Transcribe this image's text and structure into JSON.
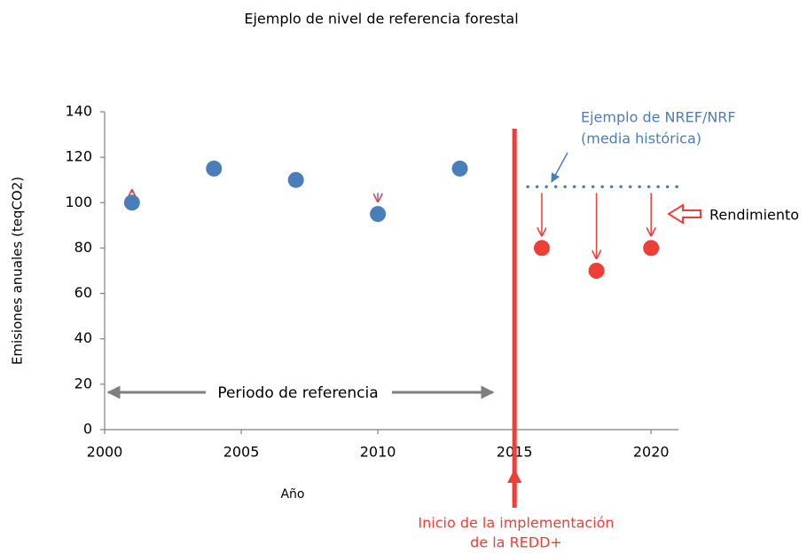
{
  "chart_data": {
    "type": "scatter",
    "title": "Ejemplo de nivel de referencia forestal",
    "x_label": "Año",
    "y_label": "Emisiones anuales (teqCO2)",
    "xlim": [
      2000,
      2021
    ],
    "xticks": [
      2000,
      2005,
      2010,
      2015,
      2020
    ],
    "ylim": [
      0,
      140
    ],
    "yticks": [
      0,
      20,
      40,
      60,
      80,
      100,
      120,
      140
    ],
    "grid": false,
    "series": [
      {
        "color": "#4a7ebb",
        "x": [
          2001,
          2004,
          2007,
          2010,
          2013
        ],
        "values": [
          100,
          115,
          110,
          95,
          115
        ]
      },
      {
        "color": "#ee3e38",
        "x": [
          2016,
          2018,
          2020
        ],
        "values": [
          80,
          70,
          80
        ]
      }
    ],
    "reference_level": 107,
    "implementation_year": 2015,
    "annotations": {
      "reference_example": [
        "Ejemplo de NREF/NRF",
        "(media histórica)"
      ],
      "performance": "Rendimiento",
      "reference_period": "Periodo de referencia",
      "implementation": [
        "Inicio de la implementación",
        "de la REDD+"
      ]
    }
  }
}
